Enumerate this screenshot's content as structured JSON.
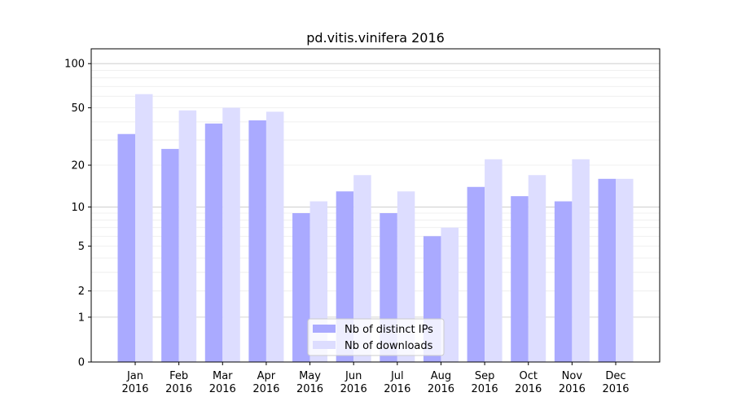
{
  "chart_data": {
    "type": "bar",
    "title": "pd.vitis.vinifera 2016",
    "xlabel": "",
    "ylabel": "",
    "yscale": "log10(1+y)",
    "ylim": [
      0,
      115
    ],
    "yticks": [
      0,
      1,
      2,
      5,
      10,
      20,
      50,
      100
    ],
    "grid": true,
    "legend_position": "bottom-center",
    "categories": [
      "Jan\n2016",
      "Feb\n2016",
      "Mar\n2016",
      "Apr\n2016",
      "May\n2016",
      "Jun\n2016",
      "Jul\n2016",
      "Aug\n2016",
      "Sep\n2016",
      "Oct\n2016",
      "Nov\n2016",
      "Dec\n2016"
    ],
    "series": [
      {
        "name": "Nb of distinct IPs",
        "color": "#aaaaff",
        "values": [
          33,
          26,
          39,
          41,
          9,
          13,
          9,
          6,
          14,
          12,
          11,
          16
        ]
      },
      {
        "name": "Nb of downloads",
        "color": "#ddddff",
        "values": [
          62,
          48,
          50,
          47,
          11,
          17,
          13,
          7,
          22,
          17,
          22,
          16
        ]
      }
    ]
  }
}
